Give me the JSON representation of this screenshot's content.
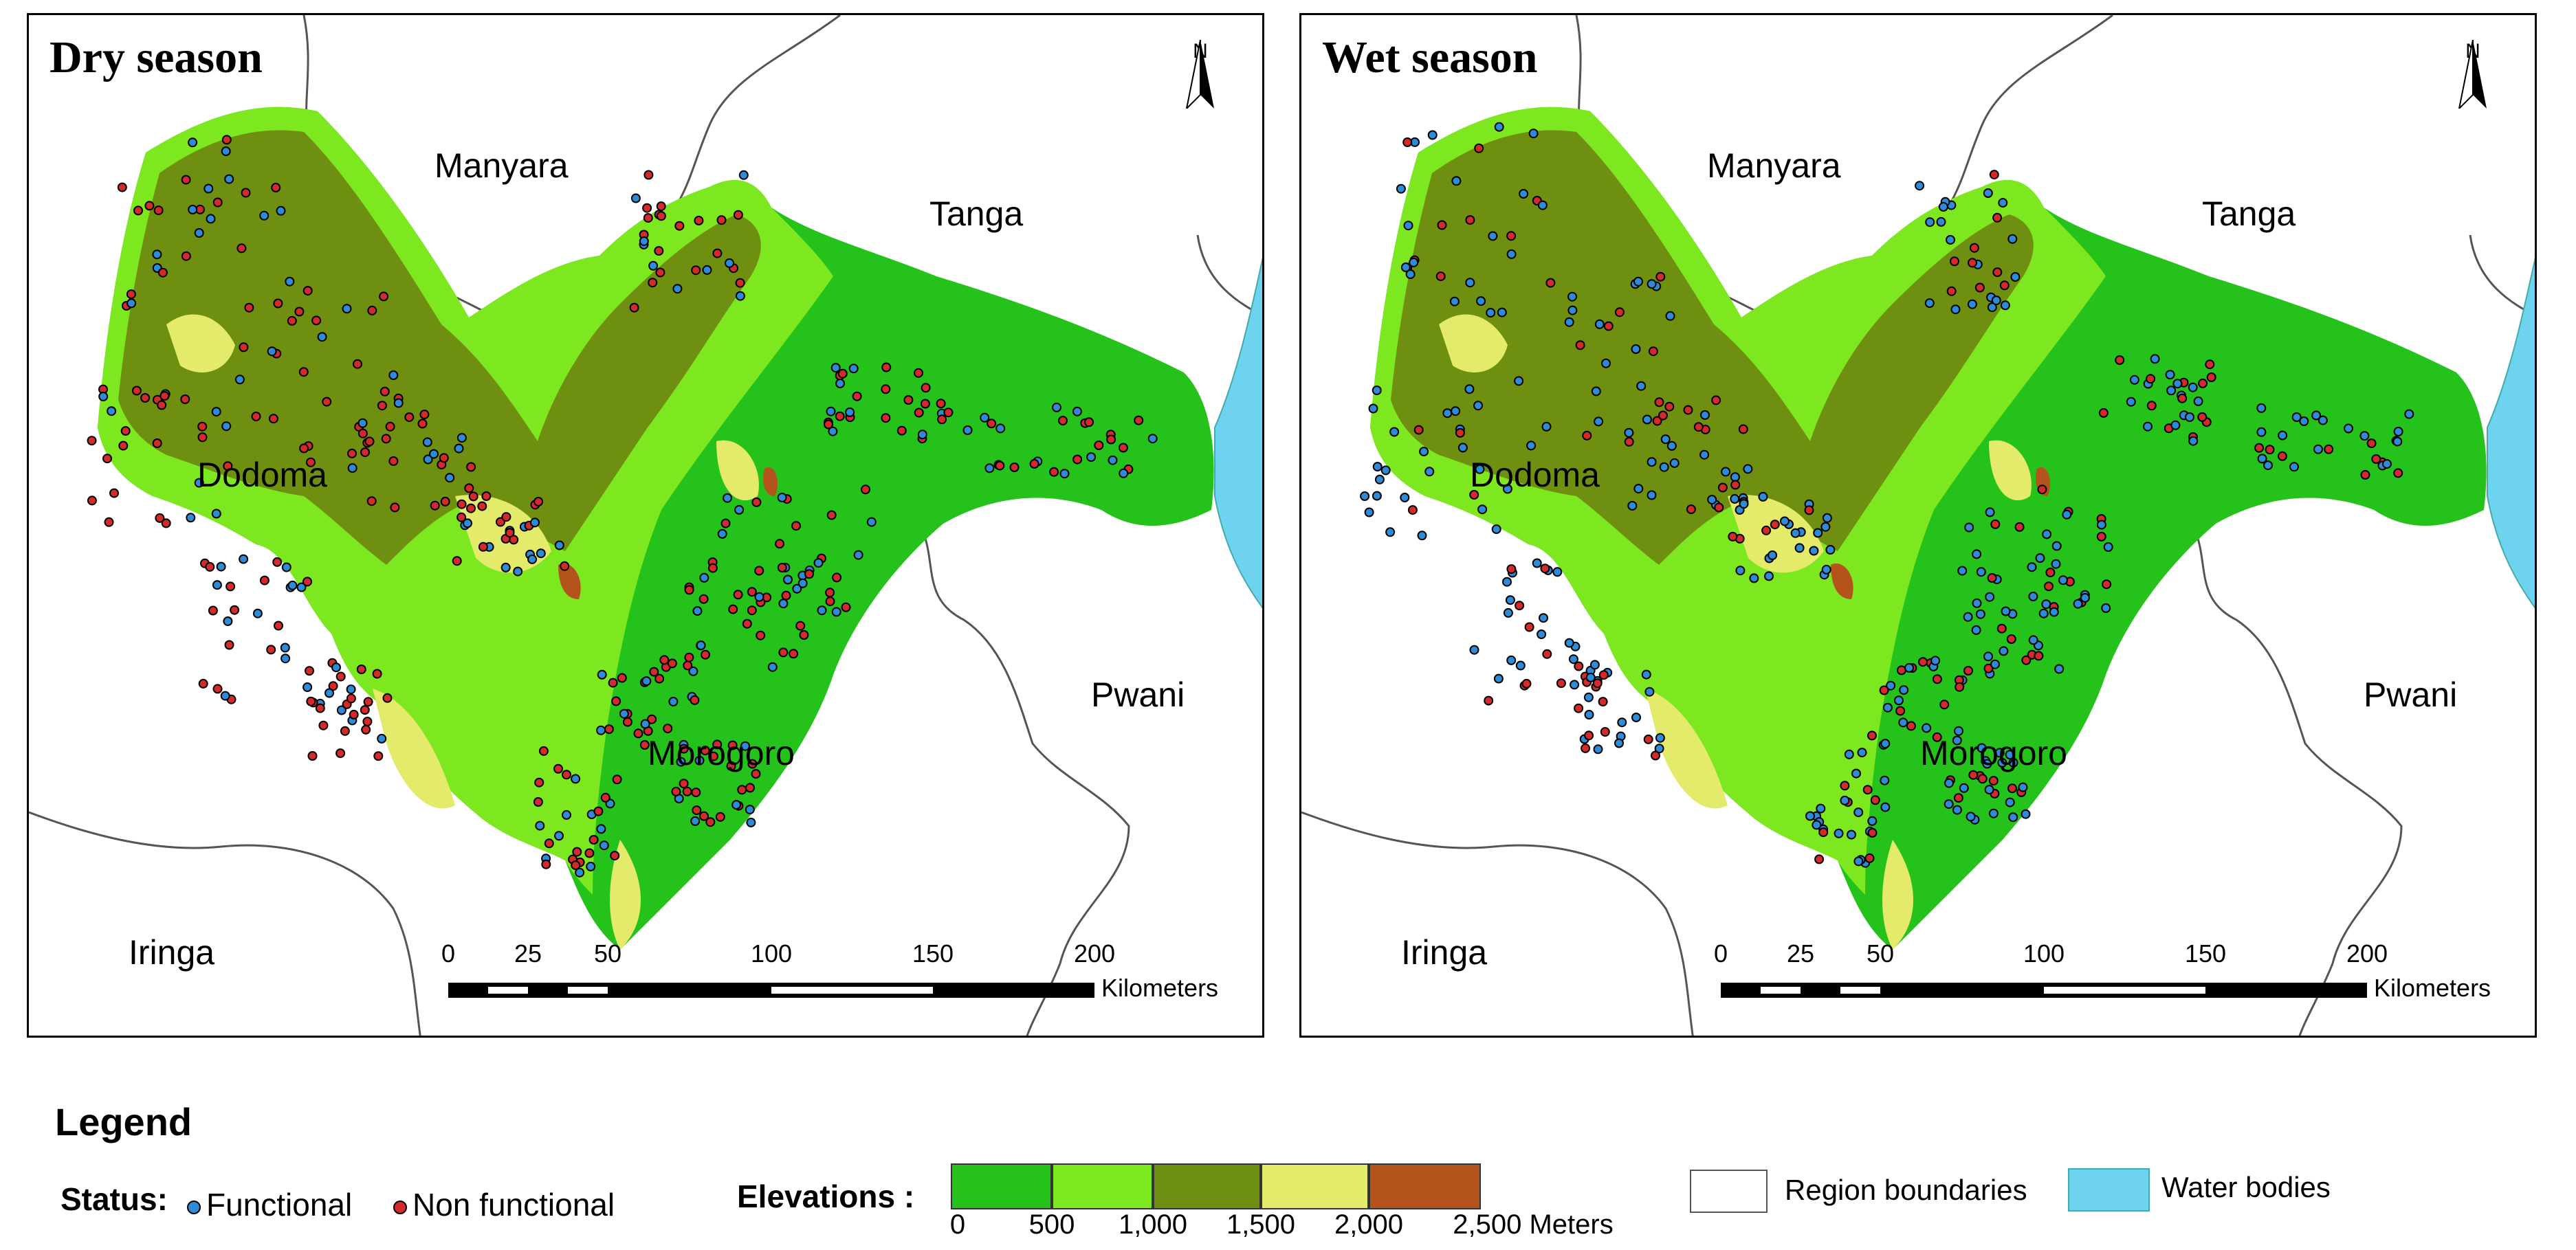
{
  "panels": [
    {
      "title": "Dry season",
      "regions": [
        "Manyara",
        "Tanga",
        "Dodoma",
        "Pwani",
        "Morogoro",
        "Iringa"
      ]
    },
    {
      "title": "Wet season",
      "regions": [
        "Manyara",
        "Tanga",
        "Dodoma",
        "Pwani",
        "Morogoro",
        "Iringa"
      ]
    }
  ],
  "north_label": "N",
  "scale": {
    "ticks": [
      "0",
      "25",
      "50",
      "100",
      "150",
      "200"
    ],
    "unit": "Kilometers"
  },
  "legend": {
    "title": "Legend",
    "status_label": "Status:",
    "functional": "Functional",
    "non_functional": "Non functional",
    "functional_color": "#2e8bd8",
    "non_functional_color": "#d42a2a",
    "elevations_label": "Elevations :",
    "elev_ticks": [
      "0",
      "500",
      "1,000",
      "1,500",
      "2,000",
      "2,500 Meters"
    ],
    "elev_colors": [
      "#25c21c",
      "#7de820",
      "#6f8f10",
      "#e4ea6a",
      "#b5531d"
    ],
    "region_boundaries": "Region boundaries",
    "water_bodies": "Water bodies",
    "water_color": "#6dd3ee"
  }
}
